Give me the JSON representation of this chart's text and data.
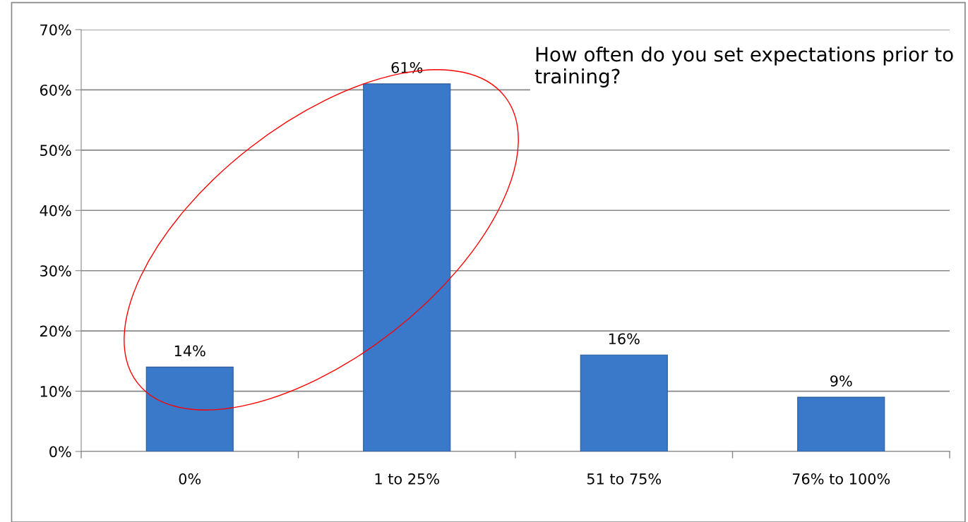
{
  "chart_data": {
    "type": "bar",
    "title": "How often do you set expectations prior to training?",
    "categories": [
      "0%",
      "1 to 25%",
      "51 to 75%",
      "76% to 100%"
    ],
    "values": [
      14,
      61,
      16,
      9
    ],
    "color": "#3a78c9",
    "value_labels": [
      "14%",
      "61%",
      "16%",
      "9%"
    ],
    "ylim": [
      0,
      70
    ],
    "yticks": [
      {
        "value": 0,
        "label": "0%"
      },
      {
        "value": 10,
        "label": "10%"
      },
      {
        "value": 20,
        "label": "20%"
      },
      {
        "value": 30,
        "label": "30%"
      },
      {
        "value": 40,
        "label": "40%"
      },
      {
        "value": 50,
        "label": "50%"
      },
      {
        "value": 60,
        "label": "60%"
      },
      {
        "value": 70,
        "label": "70%"
      }
    ],
    "grid": "y",
    "legend": false
  }
}
